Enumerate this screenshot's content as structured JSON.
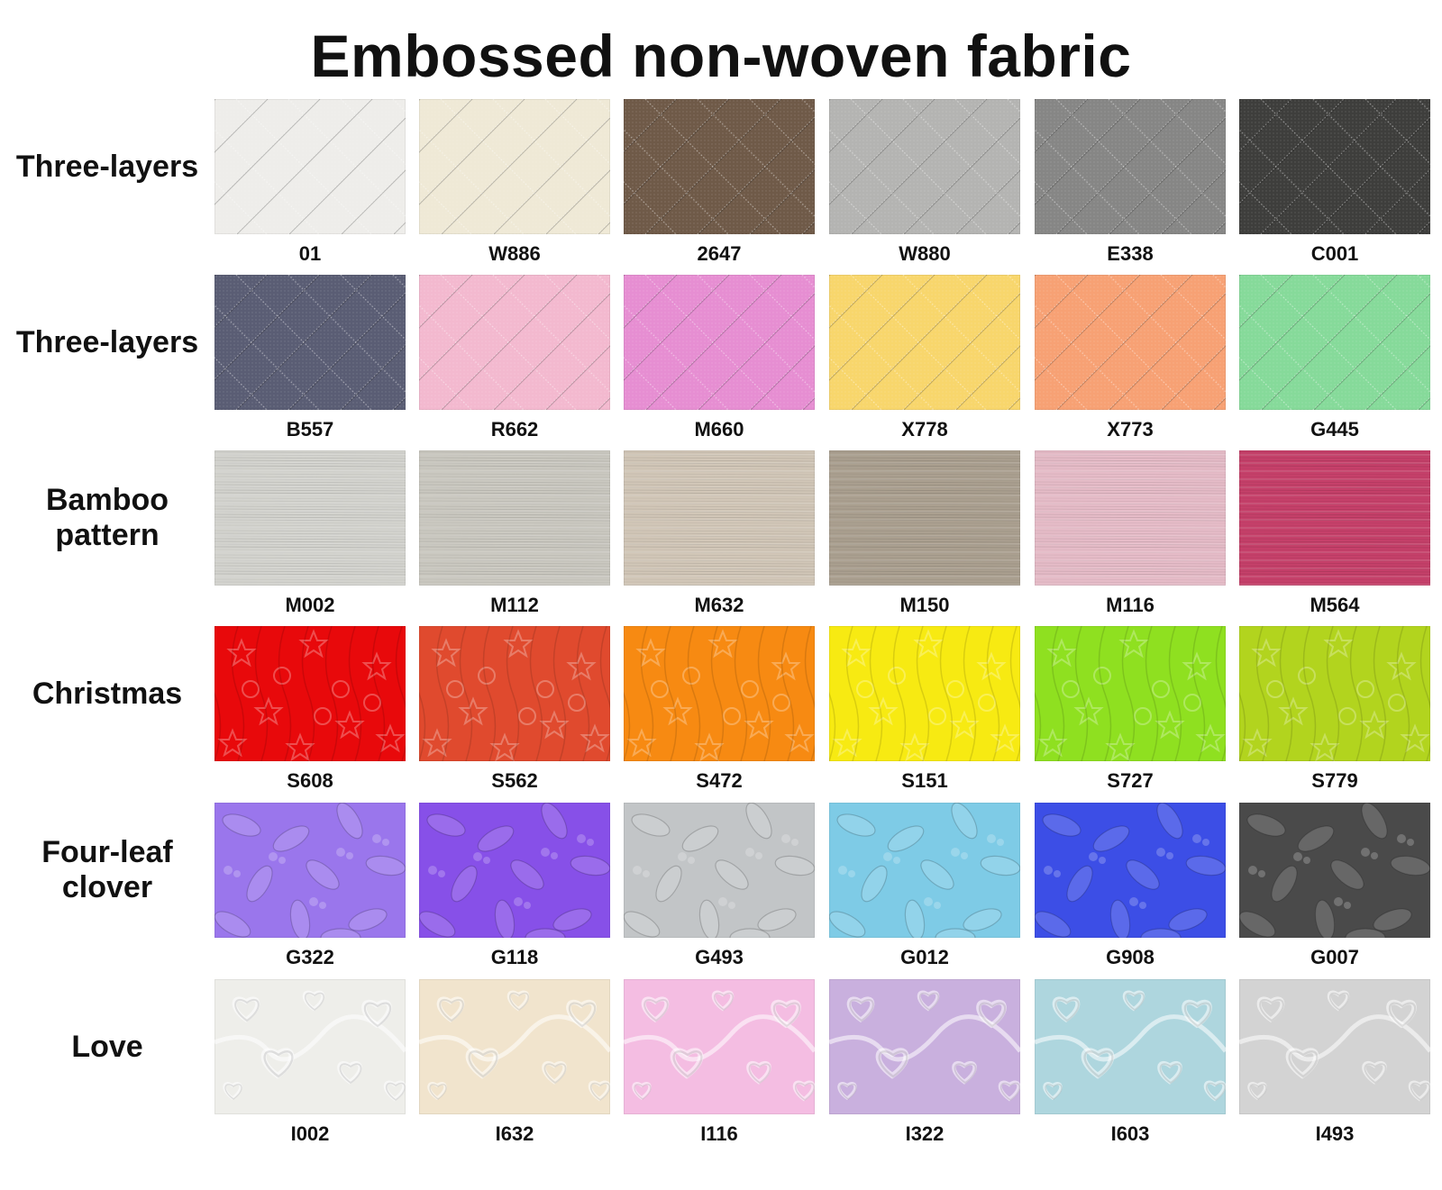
{
  "title": "Embossed non-woven fabric",
  "rows": [
    {
      "label": "Three-layers",
      "pattern": "quilt",
      "swatches": [
        {
          "code": "01",
          "color": "#eeedea"
        },
        {
          "code": "W886",
          "color": "#efe9d6"
        },
        {
          "code": "2647",
          "color": "#6f5a48"
        },
        {
          "code": "W880",
          "color": "#b4b4b2"
        },
        {
          "code": "E338",
          "color": "#868685"
        },
        {
          "code": "C001",
          "color": "#3e3e3c"
        }
      ]
    },
    {
      "label": "Three-layers",
      "pattern": "quilt",
      "swatches": [
        {
          "code": "B557",
          "color": "#5a5d74"
        },
        {
          "code": "R662",
          "color": "#f3b9cf"
        },
        {
          "code": "M660",
          "color": "#e68ed2"
        },
        {
          "code": "X778",
          "color": "#f8d66c"
        },
        {
          "code": "X773",
          "color": "#f7a174"
        },
        {
          "code": "G445",
          "color": "#86da9a"
        }
      ]
    },
    {
      "label": "Bamboo\npattern",
      "pattern": "bamboo",
      "swatches": [
        {
          "code": "M002",
          "color": "#d4d4cf"
        },
        {
          "code": "M112",
          "color": "#cbc9c1"
        },
        {
          "code": "M632",
          "color": "#d2c7b8"
        },
        {
          "code": "M150",
          "color": "#aba090"
        },
        {
          "code": "M116",
          "color": "#e6bcc8"
        },
        {
          "code": "M564",
          "color": "#c6406a"
        }
      ]
    },
    {
      "label": "Christmas",
      "pattern": "christmas",
      "swatches": [
        {
          "code": "S608",
          "color": "#e8090b"
        },
        {
          "code": "S562",
          "color": "#e04a2e"
        },
        {
          "code": "S472",
          "color": "#f78a12"
        },
        {
          "code": "S151",
          "color": "#f7ea12"
        },
        {
          "code": "S727",
          "color": "#8fe020"
        },
        {
          "code": "S779",
          "color": "#b2d41e"
        }
      ]
    },
    {
      "label": "Four-leaf\nclover",
      "pattern": "clover",
      "swatches": [
        {
          "code": "G322",
          "color": "#9a76ec"
        },
        {
          "code": "G118",
          "color": "#8750e8"
        },
        {
          "code": "G493",
          "color": "#c2c5c7"
        },
        {
          "code": "G012",
          "color": "#7ecbe6"
        },
        {
          "code": "G908",
          "color": "#3c4ee6"
        },
        {
          "code": "G007",
          "color": "#4a4a4a"
        }
      ]
    },
    {
      "label": "Love",
      "pattern": "love",
      "swatches": [
        {
          "code": "I002",
          "color": "#eeeeea"
        },
        {
          "code": "I632",
          "color": "#f1e4cd"
        },
        {
          "code": "I116",
          "color": "#f4bde2"
        },
        {
          "code": "I322",
          "color": "#c9b0de"
        },
        {
          "code": "I603",
          "color": "#aed6de"
        },
        {
          "code": "I493",
          "color": "#d3d3d3"
        }
      ]
    }
  ]
}
